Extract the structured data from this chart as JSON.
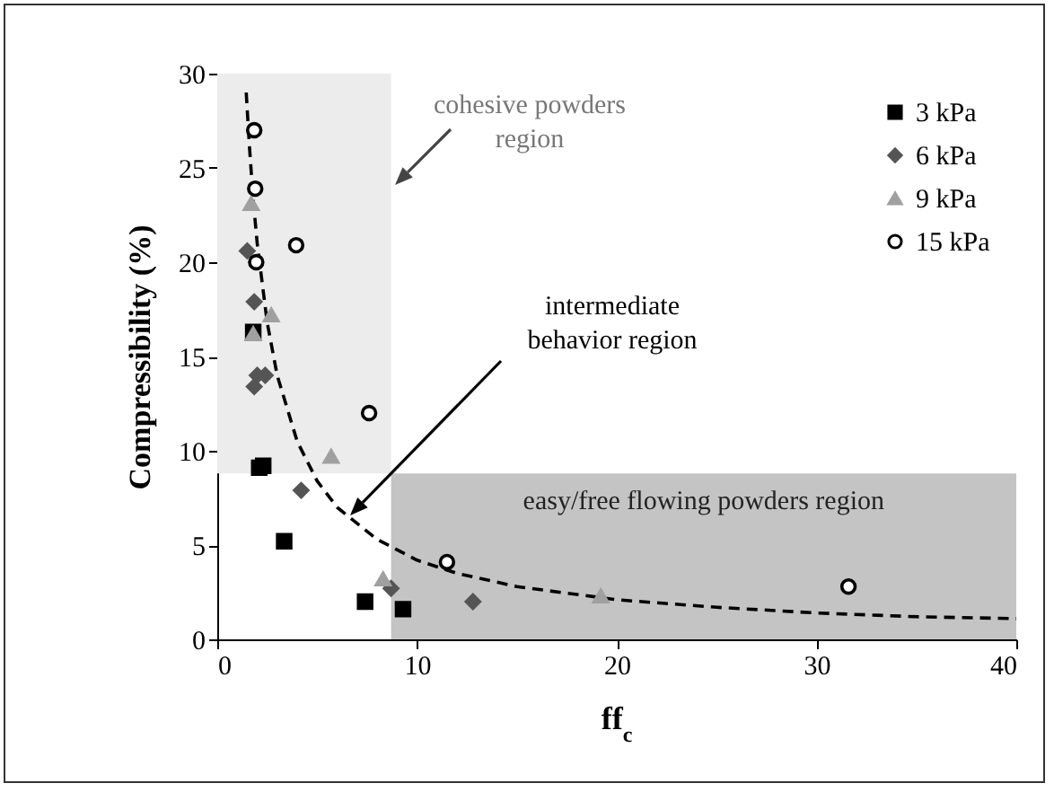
{
  "chart_data": {
    "type": "scatter",
    "xlabel": "ff$_{c}$",
    "ylabel": "Compressibility (%)",
    "xlim": [
      0,
      40
    ],
    "xticks": [
      0,
      10,
      20,
      30,
      40
    ],
    "ylim": [
      0,
      30
    ],
    "yticks": [
      0,
      5,
      10,
      15,
      20,
      25,
      30
    ],
    "grid": false,
    "legend": "top right",
    "series": [
      {
        "name": "3 kPa",
        "color": "#000000",
        "marker": "square",
        "x": [
          1.8,
          2.1,
          2.3,
          3.35,
          7.4,
          9.3
        ],
        "values": [
          16.3,
          9.1,
          9.2,
          5.2,
          2.0,
          1.6
        ]
      },
      {
        "name": "6 kPa",
        "color": "#555555",
        "marker": "diamond",
        "x": [
          1.5,
          1.85,
          2.0,
          2.4,
          1.85,
          4.2,
          8.7,
          12.8
        ],
        "values": [
          20.6,
          17.9,
          14.0,
          14.0,
          13.4,
          7.9,
          2.7,
          2.0
        ]
      },
      {
        "name": "9 kPa",
        "color": "#a0a0a0",
        "marker": "triangle",
        "x": [
          1.7,
          2.7,
          1.8,
          5.7,
          8.3,
          19.2
        ],
        "values": [
          23.1,
          17.2,
          16.2,
          9.7,
          3.2,
          2.3
        ]
      },
      {
        "name": "15 kPa",
        "color": "#000000",
        "marker": "circle",
        "x": [
          1.85,
          1.9,
          3.95,
          1.95,
          7.6,
          11.5,
          31.6
        ],
        "values": [
          27.0,
          23.9,
          20.9,
          20.0,
          12.0,
          4.1,
          2.8
        ]
      },
      {
        "type": "line",
        "color": "#000000",
        "line_style": "dashed",
        "x": [
          1.45,
          1.6,
          1.8,
          2,
          2.5,
          3,
          4,
          5,
          6,
          8,
          10,
          12,
          15,
          20,
          25,
          30,
          35,
          40
        ],
        "values": [
          29,
          26.3,
          23.3,
          21,
          16.8,
          14,
          10.5,
          8.4,
          7,
          5.3,
          4.2,
          3.5,
          2.8,
          2.1,
          1.7,
          1.4,
          1.2,
          1.1
        ]
      }
    ],
    "bands": [
      {
        "axis": "x",
        "from": 0,
        "to": 8.7,
        "color": "#ececec"
      },
      {
        "axis": "y",
        "from": 0,
        "to": 8.8,
        "color": "#c4c4c4",
        "label": "easy/free flowing powders region"
      }
    ],
    "annotations": [
      "cohesive powders region",
      "intermediate behavior region"
    ]
  }
}
